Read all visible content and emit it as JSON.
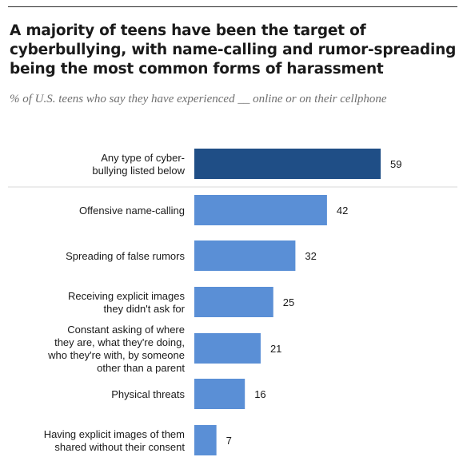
{
  "title": "A majority of teens have been the target of cyberbullying, with name-calling and rumor-spreading being the most common forms of harassment",
  "subtitle": "% of U.S. teens who say they have experienced __ online or on their cellphone",
  "colors": {
    "highlight_bar": "#1f4e86",
    "bar": "#5a8fd6",
    "separator": "#d9d9d9"
  },
  "chart_data": {
    "type": "bar",
    "orientation": "horizontal",
    "categories": [
      [
        "Any type of cyber-",
        "bullying listed below"
      ],
      [
        "Offensive name-calling"
      ],
      [
        "Spreading of false rumors"
      ],
      [
        "Receiving explicit images",
        "they didn't ask for"
      ],
      [
        "Constant asking of where",
        "they are, what they're doing,",
        "who they're with, by someone",
        "other than a parent"
      ],
      [
        "Physical threats"
      ],
      [
        "Having explicit images of them",
        "shared without their consent"
      ]
    ],
    "values": [
      59,
      42,
      32,
      25,
      21,
      16,
      7
    ],
    "value_labels": [
      "59",
      "42",
      "32",
      "25",
      "21",
      "16",
      "7"
    ],
    "highlight_index": 0,
    "xlim": [
      0,
      100
    ],
    "grid": false,
    "xlabel": "",
    "ylabel": ""
  }
}
